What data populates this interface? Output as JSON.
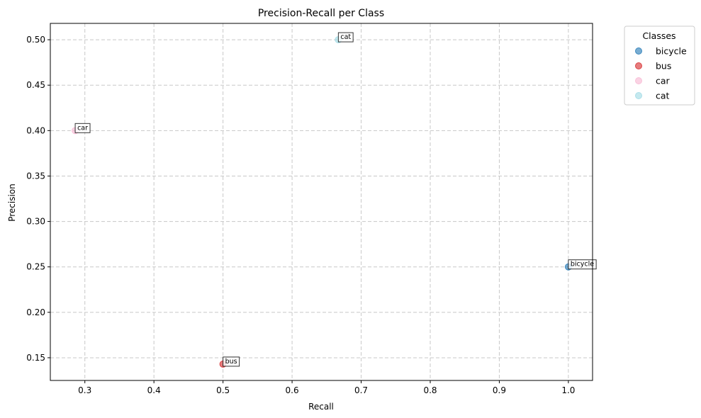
{
  "chart_data": {
    "type": "scatter",
    "title": "Precision-Recall per Class",
    "xlabel": "Recall",
    "ylabel": "Precision",
    "xlim": [
      0.25,
      1.035
    ],
    "ylim": [
      0.125,
      0.518
    ],
    "xticks": [
      0.3,
      0.4,
      0.5,
      0.6,
      0.7,
      0.8,
      0.9,
      1.0
    ],
    "xtick_labels": [
      "0.3",
      "0.4",
      "0.5",
      "0.6",
      "0.7",
      "0.8",
      "0.9",
      "1.0"
    ],
    "yticks": [
      0.15,
      0.2,
      0.25,
      0.3,
      0.35,
      0.4,
      0.45,
      0.5
    ],
    "ytick_labels": [
      "0.15",
      "0.20",
      "0.25",
      "0.30",
      "0.35",
      "0.40",
      "0.45",
      "0.50"
    ],
    "grid": true,
    "legend": {
      "title": "Classes",
      "placement": "outside-top-right"
    },
    "series": [
      {
        "name": "bicycle",
        "color": "#1f77b4",
        "x": 1.0,
        "y": 0.25,
        "label": "bicycle"
      },
      {
        "name": "bus",
        "color": "#d62728",
        "x": 0.5,
        "y": 0.143,
        "label": "bus"
      },
      {
        "name": "car",
        "color": "#f7b6d2",
        "x": 0.286,
        "y": 0.4,
        "label": "car"
      },
      {
        "name": "cat",
        "color": "#9edae5",
        "x": 0.667,
        "y": 0.5,
        "label": "cat"
      }
    ]
  }
}
